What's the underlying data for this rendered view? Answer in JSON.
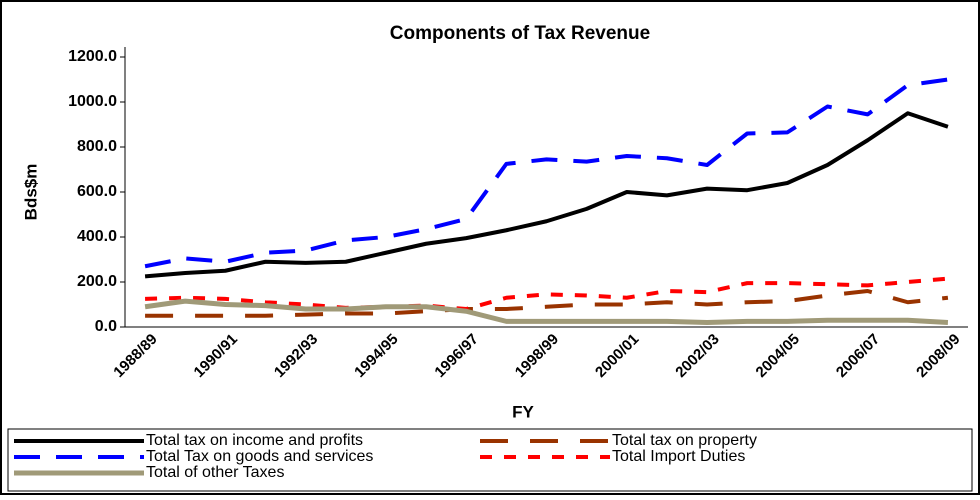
{
  "chart_data": {
    "type": "line",
    "title": "Components of Tax Revenue",
    "x_label": "FY",
    "y_label": "Bds$m",
    "categories": [
      "1988/89",
      null,
      "1990/91",
      null,
      "1992/93",
      null,
      "1994/95",
      null,
      "1996/97",
      null,
      "1998/99",
      null,
      "2000/01",
      null,
      "2002/03",
      null,
      "2004/05",
      null,
      "2006/07",
      null,
      "2008/09"
    ],
    "series": [
      {
        "name": "Total tax on income and profits",
        "color": "#000000",
        "values": [
          225,
          240,
          250,
          290,
          285,
          290,
          330,
          370,
          395,
          430,
          470,
          525,
          600,
          585,
          615,
          608,
          640,
          720,
          830,
          950,
          890
        ]
      },
      {
        "name": "Total tax on property",
        "color": "#993300",
        "values": [
          50,
          50,
          50,
          50,
          55,
          60,
          60,
          70,
          80,
          80,
          90,
          100,
          100,
          110,
          100,
          110,
          115,
          140,
          160,
          110,
          130
        ]
      },
      {
        "name": "Total Tax on goods and services",
        "color": "#0000ff",
        "values": [
          270,
          305,
          290,
          330,
          340,
          385,
          400,
          435,
          480,
          725,
          745,
          735,
          760,
          750,
          720,
          860,
          865,
          980,
          945,
          1075,
          1100
        ]
      },
      {
        "name": "Total Import Duties",
        "color": "#ff0000",
        "values": [
          125,
          130,
          125,
          110,
          100,
          85,
          90,
          95,
          80,
          130,
          145,
          140,
          130,
          160,
          155,
          195,
          195,
          190,
          185,
          200,
          215
        ]
      },
      {
        "name": "Total of other Taxes",
        "color": "#a09a78",
        "values": [
          90,
          115,
          100,
          95,
          80,
          80,
          90,
          90,
          70,
          25,
          25,
          25,
          25,
          25,
          20,
          25,
          25,
          30,
          30,
          30,
          20
        ]
      }
    ],
    "ylim": [
      0,
      1200
    ],
    "yticks": [
      {
        "value": 0,
        "label": "0.0"
      },
      {
        "value": 200,
        "label": "200.0"
      },
      {
        "value": 400,
        "label": "400.0"
      },
      {
        "value": 600,
        "label": "600.0"
      },
      {
        "value": 800,
        "label": "800.0"
      },
      {
        "value": 1000,
        "label": "1000.0"
      },
      {
        "value": 1200,
        "label": "1200.0"
      }
    ]
  }
}
